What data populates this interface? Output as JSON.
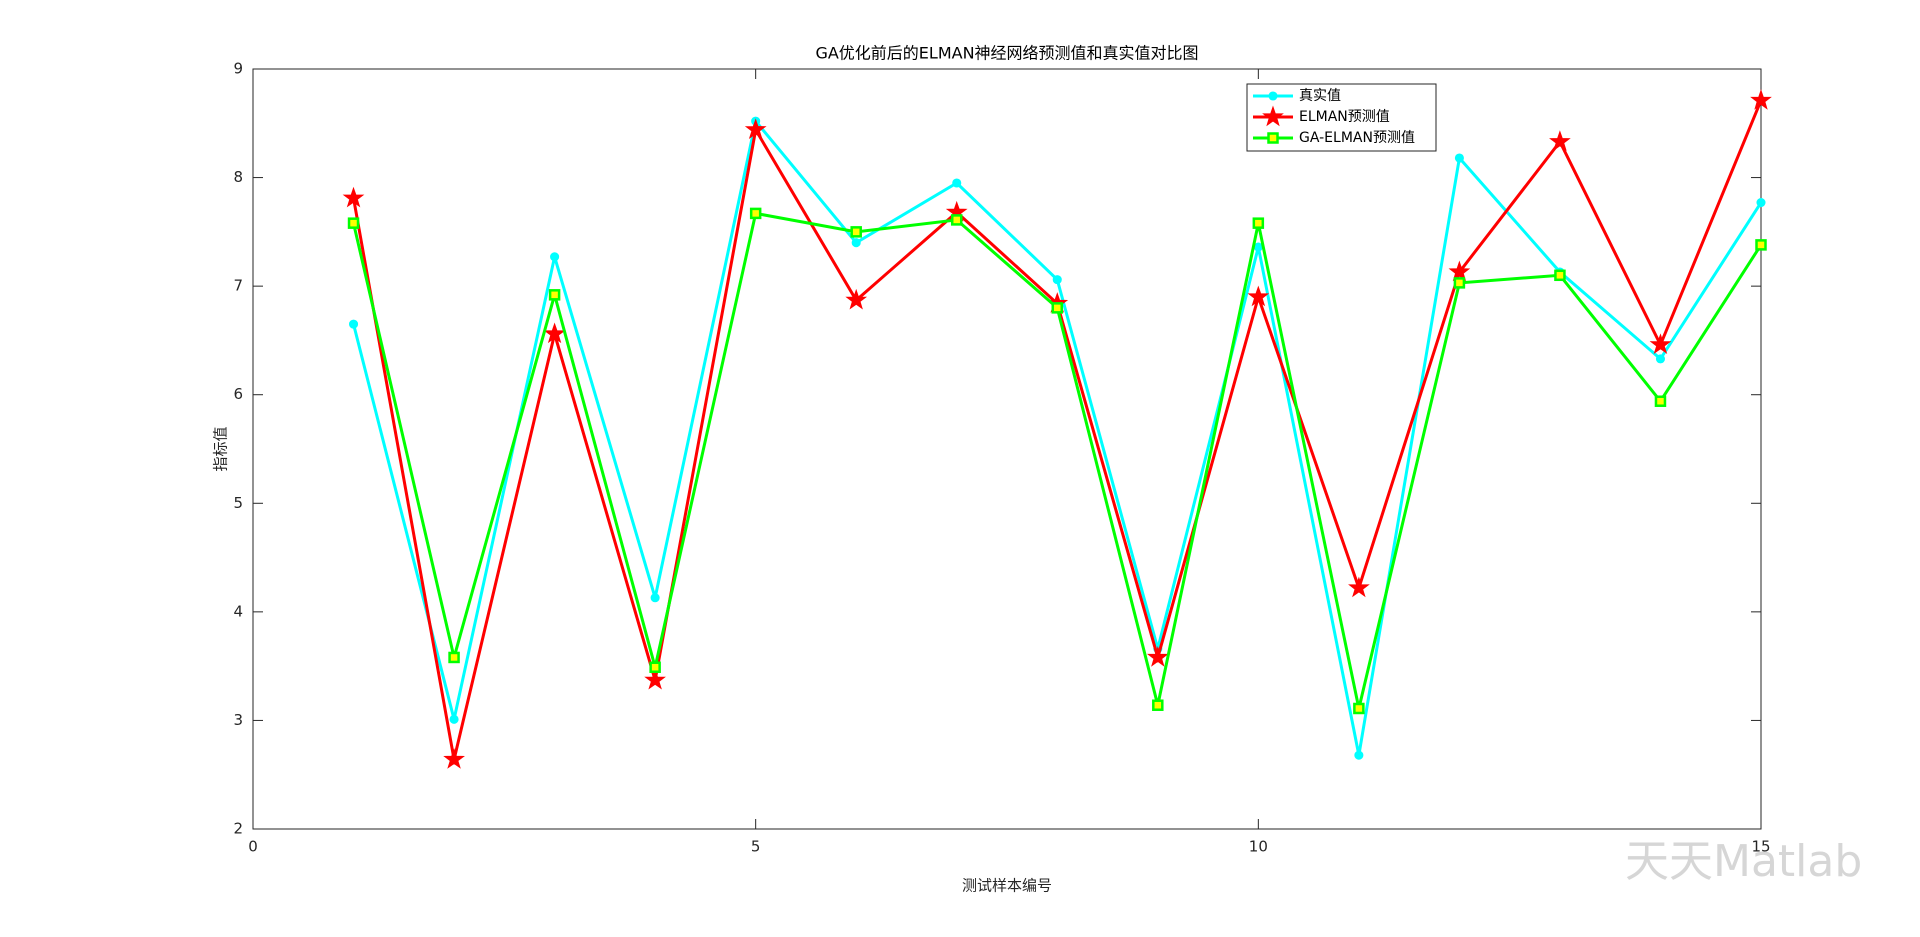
{
  "chart_data": {
    "type": "line",
    "title": "GA优化前后的ELMAN神经网络预测值和真实值对比图",
    "x_label": "测试样本编号",
    "y_label": "指标值",
    "x": [
      1,
      2,
      3,
      4,
      5,
      6,
      7,
      8,
      9,
      10,
      11,
      12,
      13,
      14,
      15
    ],
    "series": [
      {
        "name": "真实值",
        "color": "#00ffff",
        "marker": "circle",
        "marker_face": "#00ffff",
        "values": [
          6.65,
          3.01,
          7.27,
          4.13,
          8.52,
          7.4,
          7.95,
          7.06,
          3.66,
          7.36,
          2.68,
          8.18,
          7.13,
          6.33,
          7.77
        ]
      },
      {
        "name": "ELMAN预测值",
        "color": "#ff0000",
        "marker": "star",
        "marker_face": "#ff0000",
        "values": [
          7.81,
          2.64,
          6.56,
          3.37,
          8.44,
          6.87,
          7.68,
          6.84,
          3.58,
          6.9,
          4.22,
          7.13,
          8.33,
          6.46,
          8.71
        ]
      },
      {
        "name": "GA-ELMAN预测值",
        "color": "#00ff00",
        "marker": "square",
        "marker_face": "#ffff00",
        "values": [
          7.58,
          3.58,
          6.92,
          3.49,
          7.67,
          7.5,
          7.61,
          6.8,
          3.14,
          7.58,
          3.11,
          7.03,
          7.1,
          5.94,
          7.38
        ]
      }
    ],
    "xlim": [
      0,
      15
    ],
    "xticks": [
      0,
      5,
      10,
      15
    ],
    "ylim": [
      2,
      9
    ],
    "yticks": [
      2,
      3,
      4,
      5,
      6,
      7,
      8,
      9
    ],
    "grid": false,
    "legend_position": "upper right"
  },
  "watermark": "天天Matlab"
}
